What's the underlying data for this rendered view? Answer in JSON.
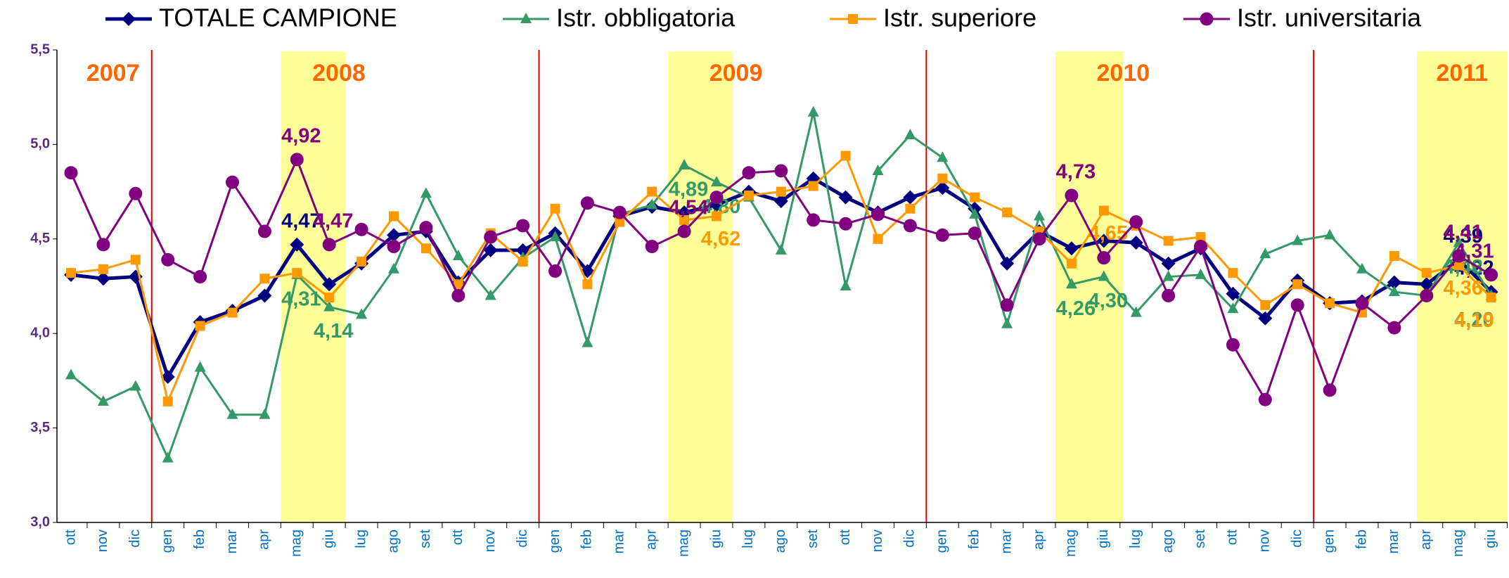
{
  "chart_data": {
    "type": "line",
    "categories": [
      "ott",
      "nov",
      "dic",
      "gen",
      "feb",
      "mar",
      "apr",
      "mag",
      "giu",
      "lug",
      "ago",
      "set",
      "ott",
      "nov",
      "dic",
      "gen",
      "feb",
      "mar",
      "apr",
      "mag",
      "giu",
      "lug",
      "ago",
      "set",
      "ott",
      "nov",
      "dic",
      "gen",
      "feb",
      "mar",
      "apr",
      "mag",
      "giu",
      "lug",
      "ago",
      "set",
      "ott",
      "nov",
      "dic",
      "gen",
      "feb",
      "mar",
      "apr",
      "mag",
      "giu"
    ],
    "annotations": [
      "2007",
      "2008",
      "2009",
      "2010",
      "2011"
    ],
    "ylim": [
      3.0,
      5.5
    ],
    "yticks": [
      {
        "value": 3.0,
        "label": "3,0"
      },
      {
        "value": 3.5,
        "label": "3,5"
      },
      {
        "value": 4.0,
        "label": "4,0"
      },
      {
        "value": 4.5,
        "label": "4,5"
      },
      {
        "value": 5.0,
        "label": "5,0"
      },
      {
        "value": 5.5,
        "label": "5,5"
      }
    ],
    "grid": false,
    "legend": "top",
    "series": [
      {
        "name": "TOTALE CAMPIONE",
        "color": "#000080",
        "values": [
          4.31,
          4.29,
          4.3,
          3.77,
          4.06,
          4.12,
          4.2,
          4.47,
          4.26,
          4.37,
          4.52,
          4.54,
          4.27,
          4.44,
          4.44,
          4.53,
          4.33,
          4.62,
          4.67,
          4.64,
          4.68,
          4.75,
          4.7,
          4.82,
          4.72,
          4.64,
          4.72,
          4.77,
          4.66,
          4.37,
          4.54,
          4.45,
          4.49,
          4.48,
          4.37,
          4.45,
          4.21,
          4.08,
          4.28,
          4.16,
          4.17,
          4.27,
          4.26,
          4.39,
          4.22
        ],
        "value_labels": [
          null,
          null,
          null,
          null,
          null,
          null,
          null,
          "4,47",
          null,
          null,
          null,
          null,
          null,
          null,
          null,
          null,
          null,
          null,
          null,
          null,
          null,
          null,
          null,
          null,
          null,
          null,
          null,
          null,
          null,
          null,
          null,
          null,
          null,
          null,
          null,
          null,
          null,
          null,
          null,
          null,
          null,
          null,
          null,
          "4,39",
          "4,22"
        ]
      },
      {
        "name": "Istr. obbligatoria",
        "color": "#339966",
        "values": [
          3.78,
          3.64,
          3.72,
          3.34,
          3.82,
          3.57,
          3.57,
          4.31,
          4.14,
          4.1,
          4.34,
          4.74,
          4.41,
          4.2,
          4.4,
          4.51,
          3.95,
          4.63,
          4.68,
          4.89,
          4.8,
          4.72,
          4.44,
          5.17,
          4.25,
          4.86,
          5.05,
          4.93,
          4.63,
          4.05,
          4.62,
          4.26,
          4.3,
          4.11,
          4.3,
          4.31,
          4.13,
          4.42,
          4.49,
          4.52,
          4.34,
          4.22,
          4.2,
          4.48,
          4.2
        ],
        "value_labels": [
          null,
          null,
          null,
          null,
          null,
          null,
          null,
          "4,31",
          "4,14",
          null,
          null,
          null,
          null,
          null,
          null,
          null,
          null,
          null,
          null,
          "4,89",
          "4,80",
          null,
          null,
          null,
          null,
          null,
          null,
          null,
          null,
          null,
          null,
          "4,26",
          "4,30",
          null,
          null,
          null,
          null,
          null,
          null,
          null,
          null,
          null,
          null,
          "4,48",
          "4,20"
        ]
      },
      {
        "name": "Istr. superiore",
        "color": "#ff9900",
        "values": [
          4.32,
          4.34,
          4.39,
          3.64,
          4.04,
          4.11,
          4.29,
          4.32,
          4.19,
          4.38,
          4.62,
          4.45,
          4.26,
          4.53,
          4.38,
          4.66,
          4.26,
          4.59,
          4.75,
          4.6,
          4.62,
          4.73,
          4.75,
          4.78,
          4.94,
          4.5,
          4.66,
          4.82,
          4.72,
          4.64,
          4.54,
          4.37,
          4.65,
          4.57,
          4.49,
          4.51,
          4.32,
          4.15,
          4.26,
          4.16,
          4.11,
          4.41,
          4.32,
          4.36,
          4.19
        ],
        "value_labels": [
          null,
          null,
          null,
          null,
          null,
          null,
          null,
          null,
          null,
          null,
          null,
          null,
          null,
          null,
          null,
          null,
          null,
          null,
          null,
          null,
          "4,62",
          null,
          null,
          null,
          null,
          null,
          null,
          null,
          null,
          null,
          null,
          null,
          "4,65",
          null,
          null,
          null,
          null,
          null,
          null,
          null,
          null,
          null,
          null,
          "4,36",
          "4,19"
        ]
      },
      {
        "name": "Istr. universitaria",
        "color": "#800080",
        "values": [
          4.85,
          4.47,
          4.74,
          4.39,
          4.3,
          4.8,
          4.54,
          4.92,
          4.47,
          4.55,
          4.46,
          4.56,
          4.2,
          4.51,
          4.57,
          4.33,
          4.69,
          4.64,
          4.46,
          4.54,
          4.72,
          4.85,
          4.86,
          4.6,
          4.58,
          4.63,
          4.57,
          4.52,
          4.53,
          4.15,
          4.5,
          4.73,
          4.4,
          4.59,
          4.2,
          4.46,
          3.94,
          3.65,
          4.15,
          3.7,
          4.16,
          4.03,
          4.2,
          4.41,
          4.31
        ],
        "value_labels": [
          null,
          null,
          null,
          null,
          null,
          null,
          null,
          "4,92",
          "4,47",
          null,
          null,
          null,
          null,
          null,
          null,
          null,
          null,
          null,
          null,
          "4,54",
          null,
          null,
          null,
          null,
          null,
          null,
          null,
          null,
          null,
          null,
          null,
          "4,73",
          null,
          null,
          null,
          null,
          null,
          null,
          null,
          null,
          null,
          null,
          null,
          "4,41",
          "4,31"
        ]
      }
    ]
  }
}
